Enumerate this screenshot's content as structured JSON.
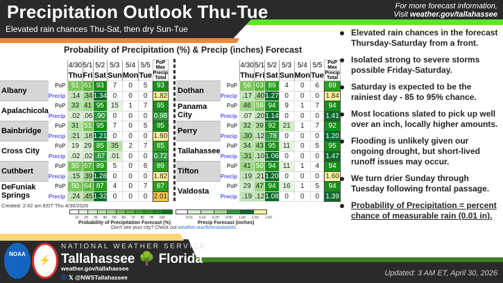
{
  "header": {
    "title": "Precipitation Outlook Thu-Tue",
    "subtitle": "Elevated rain chances Thu-Sat, then dry Sun-Tue",
    "more_info": "For more forecast information,",
    "visit": "Visit ",
    "visit_link": "weather.gov/tallahassee"
  },
  "chart": {
    "title": "Probability of Precipitation (%) & Precip (inches) Forecast",
    "dates": [
      "4/30",
      "5/1",
      "5/2",
      "5/3",
      "5/4",
      "5/5"
    ],
    "days": [
      "Thu",
      "Fri",
      "Sat",
      "Sun",
      "Mon",
      "Tue"
    ],
    "max_header": "PoP Max",
    "total_header": "Precip Total",
    "pop_label": "PoP",
    "precip_label": "Precip",
    "left": [
      {
        "city": "Albany",
        "pop": [
          51,
          61,
          93,
          7,
          0,
          5
        ],
        "precip": [
          ".14",
          ".34",
          "1.34",
          "0",
          "0",
          "0"
        ],
        "pop_max": "93",
        "total": "1.82"
      },
      {
        "city": "Apalachicola",
        "pop": [
          33,
          41,
          95,
          15,
          1,
          7
        ],
        "precip": [
          ".02",
          ".06",
          ".90",
          "0",
          "0",
          "0"
        ],
        "pop_max": "95",
        "total": "0.98"
      },
      {
        "city": "Bainbridge",
        "pop": [
          31,
          51,
          95,
          7,
          0,
          5
        ],
        "precip": [
          ".21",
          ".18",
          "1.21",
          "0",
          "0",
          "0"
        ],
        "pop_max": "95",
        "total": "1.60"
      },
      {
        "city": "Cross City",
        "pop": [
          19,
          29,
          85,
          35,
          2,
          7
        ],
        "precip": [
          ".02",
          ".02",
          ".67",
          ".01",
          "0",
          "0"
        ],
        "pop_max": "85",
        "total": "0.72"
      },
      {
        "city": "Cuthbert",
        "pop": [
          50,
          67,
          89,
          5,
          0,
          6
        ],
        "precip": [
          ".15",
          ".39",
          "1.28",
          "0",
          "0",
          "0"
        ],
        "pop_max": "89",
        "total": "1.82"
      },
      {
        "city": "DeFuniak Springs",
        "pop": [
          50,
          64,
          87,
          4,
          0,
          7
        ],
        "precip": [
          ".24",
          ".45",
          "1.32",
          "0",
          "0",
          "0"
        ],
        "pop_max": "87",
        "total": "2.01"
      }
    ],
    "right": [
      {
        "city": "Dothan",
        "pop": [
          56,
          63,
          89,
          4,
          0,
          6
        ],
        "precip": [
          ".17",
          ".40",
          "1.27",
          "0",
          "0",
          "0"
        ],
        "pop_max": "89",
        "total": "1.84"
      },
      {
        "city": "Panama City",
        "pop": [
          46,
          58,
          94,
          9,
          1,
          7
        ],
        "precip": [
          ".07",
          ".20",
          "1.14",
          "0",
          "0",
          "0"
        ],
        "pop_max": "94",
        "total": "1.41"
      },
      {
        "city": "Perry",
        "pop": [
          32,
          39,
          92,
          21,
          1,
          7
        ],
        "precip": [
          ".30",
          ".12",
          ".78",
          "0",
          "0",
          "0"
        ],
        "pop_max": "92",
        "total": "1.20"
      },
      {
        "city": "Tallahassee",
        "pop": [
          34,
          43,
          95,
          11,
          0,
          5
        ],
        "precip": [
          ".31",
          ".10",
          "1.06",
          "0",
          "0",
          "0"
        ],
        "pop_max": "95",
        "total": "1.47"
      },
      {
        "city": "Tifton",
        "pop": [
          41,
          50,
          94,
          11,
          1,
          4
        ],
        "precip": [
          ".19",
          ".21",
          "1.20",
          "0",
          "0",
          "0"
        ],
        "pop_max": "94",
        "total": "1.60"
      },
      {
        "city": "Valdosta",
        "pop": [
          29,
          47,
          94,
          16,
          1,
          5
        ],
        "precip": [
          ".19",
          ".12",
          "1.08",
          "0",
          "0",
          "0"
        ],
        "pop_max": "94",
        "total": "1.39"
      }
    ],
    "created": "Created: 2:42 am EDT Thu 4/30/2026",
    "pop_legend": {
      "title": "Probability of Precipitation Forecast (%)",
      "ticks": [
        "10",
        "20",
        "30",
        "40",
        "50",
        "60",
        "70",
        "80",
        "90",
        "100"
      ]
    },
    "precip_legend": {
      "title": "Precip Forecast (inches)",
      "ticks": [
        "0.01",
        "0.10",
        "0.25",
        "0.50",
        "1.00",
        "1.50",
        "2.00"
      ]
    },
    "dont_see": "Don't see your city? Check out ",
    "dont_see_link": "weather.gov/forecastpoints"
  },
  "bullets": [
    "Elevated rain chances in the forecast Thursday-Saturday from a front.",
    "Isolated strong to severe storms possible Friday-Saturday.",
    "Saturday is expected to be the rainiest day - 85 to 95% chance.",
    "Most locations slated to pick up well over an inch, locally higher amounts.",
    "Flooding is unlikely given our ongoing drought, but short-lived runoff issues may occur.",
    "We turn drier Sunday through Tuesday following frontal passage.",
    "Probability of Precipitation = percent chance of measurable rain (0.01 in)."
  ],
  "footer": {
    "agency": "NATIONAL WEATHER SERVICE",
    "office_city": "Tallahassee",
    "office_state": "Florida",
    "site": "weather.gov/tallahassee",
    "social": "@NWSTallahassee",
    "updated": "Updated: 3 AM ET, April 30, 2026",
    "noaa_logo": "NOAA"
  },
  "colors": {
    "header_bg": "#2a2a2a",
    "accent_green": "#5ce52a",
    "accent_orange": "#f3873a",
    "pop_high": "#1e9a1e",
    "precip_high": "#0b6b2c",
    "total_yellow": "#fff59d",
    "total_orange": "#f9c74f"
  }
}
